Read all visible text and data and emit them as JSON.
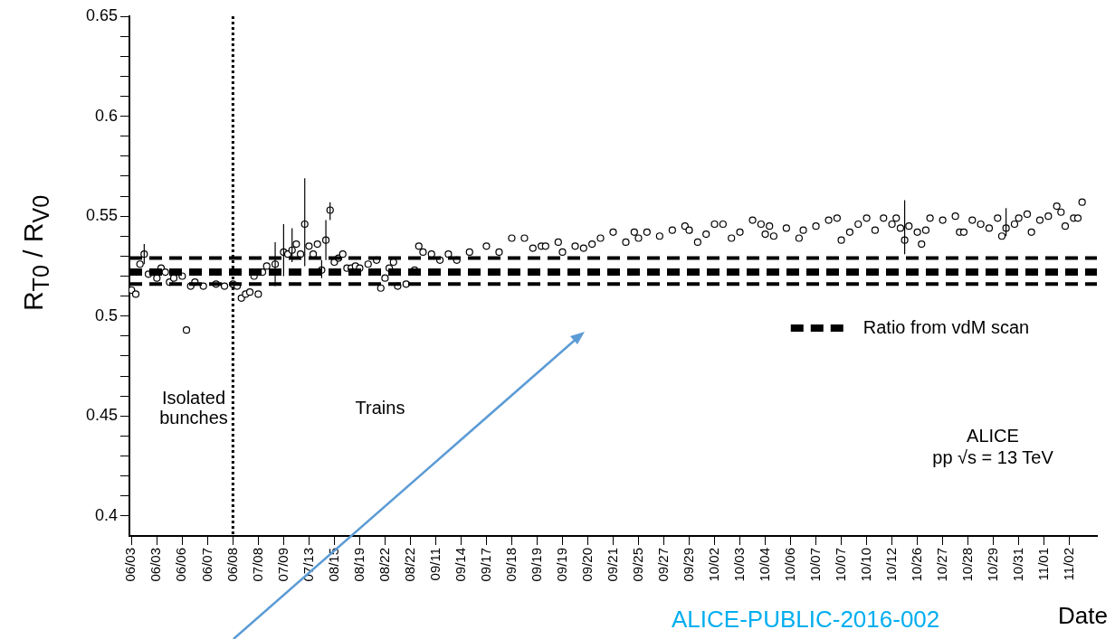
{
  "chart_data": {
    "type": "scatter",
    "xlabel": "Date",
    "ylabel": "R$_{T0}$ / R$_{V0}$",
    "categories": [
      "06/03",
      null,
      null,
      null,
      null,
      null,
      "06/03",
      null,
      null,
      null,
      null,
      null,
      "06/06",
      null,
      null,
      null,
      null,
      null,
      "06/07",
      null,
      null,
      null,
      null,
      null,
      "06/08",
      null,
      null,
      null,
      null,
      null,
      "07/08",
      null,
      null,
      null,
      null,
      null,
      "07/09",
      null,
      null,
      null,
      null,
      null,
      "07/13",
      null,
      null,
      null,
      null,
      null,
      "08/15",
      null,
      null,
      null,
      null,
      null,
      "08/19",
      null,
      null,
      null,
      null,
      null,
      "08/22",
      null,
      null,
      null,
      null,
      null,
      "08/22",
      null,
      null,
      null,
      null,
      null,
      "09/11",
      null,
      null,
      null,
      null,
      null,
      "09/14",
      null,
      null,
      null,
      null,
      null,
      "09/17",
      null,
      null,
      null,
      null,
      null,
      "09/18",
      null,
      null,
      null,
      null,
      null,
      "09/19",
      null,
      null,
      null,
      null,
      null,
      "09/19",
      null,
      null,
      null,
      null,
      null,
      "09/20",
      null,
      null,
      null,
      null,
      null,
      "09/21",
      null,
      null,
      null,
      null,
      null,
      "09/25",
      null,
      null,
      null,
      null,
      null,
      "09/27",
      null,
      null,
      null,
      null,
      null,
      "09/29",
      null,
      null,
      null,
      null,
      null,
      "10/02",
      null,
      null,
      null,
      null,
      null,
      "10/03",
      null,
      null,
      null,
      null,
      null,
      "10/04",
      null,
      null,
      null,
      null,
      null,
      "10/06",
      null,
      null,
      null,
      null,
      null,
      "10/07",
      null,
      null,
      null,
      null,
      null,
      "10/07",
      null,
      null,
      null,
      null,
      null,
      "10/10",
      null,
      null,
      null,
      null,
      null,
      "10/12",
      null,
      null,
      null,
      null,
      null,
      "10/26",
      null,
      null,
      null,
      null,
      null,
      "10/27",
      null,
      null,
      null,
      null,
      null,
      "10/28",
      null,
      null,
      null,
      null,
      null,
      "10/29",
      null,
      null,
      null,
      null,
      null,
      "10/31",
      null,
      null,
      null,
      null,
      null,
      "11/01",
      null,
      null,
      null,
      null,
      null,
      "11/02",
      null,
      null,
      null,
      null,
      null,
      null
    ],
    "ylim": [
      0.39,
      0.65
    ],
    "yticks": [
      {
        "value": 0.4,
        "label": "0.4"
      },
      {
        "value": 0.41,
        "label": null
      },
      {
        "value": 0.42,
        "label": null
      },
      {
        "value": 0.43,
        "label": null
      },
      {
        "value": 0.44,
        "label": null
      },
      {
        "value": 0.45,
        "label": "0.45"
      },
      {
        "value": 0.46,
        "label": null
      },
      {
        "value": 0.47,
        "label": null
      },
      {
        "value": 0.48,
        "label": null
      },
      {
        "value": 0.49,
        "label": null
      },
      {
        "value": 0.5,
        "label": "0.5"
      },
      {
        "value": 0.51,
        "label": null
      },
      {
        "value": 0.52,
        "label": null
      },
      {
        "value": 0.53,
        "label": null
      },
      {
        "value": 0.54,
        "label": null
      },
      {
        "value": 0.55,
        "label": "0.55"
      },
      {
        "value": 0.56,
        "label": null
      },
      {
        "value": 0.57,
        "label": null
      },
      {
        "value": 0.58,
        "label": null
      },
      {
        "value": 0.59,
        "label": null
      },
      {
        "value": 0.6,
        "label": "0.6"
      },
      {
        "value": 0.61,
        "label": null
      },
      {
        "value": 0.62,
        "label": null
      },
      {
        "value": 0.63,
        "label": null
      },
      {
        "value": 0.64,
        "label": null
      },
      {
        "value": 0.65,
        "label": "0.65"
      }
    ],
    "legend": "right",
    "marker": "circle",
    "series": [
      {
        "color": "#000000",
        "values": [
          0.513,
          0.511,
          0.526,
          0.531,
          0.521,
          0.522,
          0.519,
          0.524,
          0.522,
          0.517,
          0.519,
          null,
          0.52,
          0.493,
          0.515,
          0.517,
          null,
          0.515,
          null,
          null,
          0.516,
          null,
          0.515,
          null,
          0.516,
          0.515,
          0.509,
          0.511,
          0.512,
          0.52,
          0.511,
          0.522,
          0.525,
          null,
          0.526,
          null,
          0.532,
          0.531,
          0.533,
          0.536,
          0.531,
          0.546,
          0.535,
          0.531,
          0.536,
          0.523,
          0.538,
          0.553,
          0.527,
          0.529,
          0.531,
          0.524,
          0.524,
          0.525,
          0.524,
          null,
          0.526,
          null,
          0.528,
          0.514,
          0.519,
          0.524,
          0.527,
          0.515,
          null,
          0.516,
          null,
          0.523,
          0.535,
          0.532,
          null,
          0.531,
          null,
          0.528,
          null,
          0.531,
          null,
          0.528,
          null,
          null,
          0.532,
          null,
          null,
          null,
          0.535,
          null,
          null,
          0.532,
          null,
          null,
          0.539,
          null,
          null,
          0.539,
          null,
          0.534,
          null,
          0.535,
          0.535,
          null,
          null,
          0.537,
          0.532,
          null,
          null,
          0.535,
          null,
          0.534,
          null,
          0.536,
          null,
          0.539,
          null,
          null,
          0.542,
          null,
          null,
          0.537,
          null,
          0.542,
          0.539,
          null,
          0.542,
          null,
          null,
          0.54,
          null,
          null,
          0.543,
          null,
          null,
          0.545,
          0.543,
          null,
          0.537,
          null,
          0.541,
          null,
          0.546,
          null,
          0.546,
          null,
          0.539,
          null,
          0.542,
          null,
          null,
          0.548,
          null,
          0.546,
          0.541,
          0.545,
          0.54,
          null,
          null,
          0.544,
          null,
          null,
          0.539,
          0.543,
          null,
          null,
          0.545,
          null,
          null,
          0.548,
          null,
          0.549,
          0.538,
          null,
          0.542,
          null,
          0.546,
          null,
          0.549,
          null,
          0.543,
          null,
          0.549,
          null,
          0.546,
          0.549,
          0.544,
          0.538,
          0.545,
          null,
          0.542,
          0.536,
          0.543,
          0.549,
          null,
          null,
          0.548,
          null,
          null,
          0.55,
          0.542,
          0.542,
          null,
          0.548,
          null,
          0.546,
          null,
          0.544,
          null,
          0.549,
          0.54,
          0.544,
          null,
          0.546,
          0.549,
          null,
          0.551,
          0.542,
          null,
          0.548,
          null,
          0.55,
          null,
          0.555,
          0.552,
          0.545,
          null,
          0.549,
          0.549,
          0.557,
          null,
          null,
          null
        ],
        "errors": [
          null,
          null,
          null,
          [
            0.526,
            0.536
          ],
          null,
          null,
          null,
          null,
          null,
          null,
          null,
          null,
          null,
          null,
          null,
          null,
          null,
          null,
          null,
          null,
          null,
          null,
          null,
          null,
          null,
          null,
          null,
          null,
          null,
          null,
          null,
          null,
          null,
          null,
          [
            0.515,
            0.537
          ],
          null,
          [
            0.52,
            0.546
          ],
          null,
          [
            0.527,
            0.544
          ],
          null,
          null,
          [
            0.525,
            0.569
          ],
          null,
          null,
          null,
          [
            0.519,
            0.528
          ],
          [
            0.528,
            0.548
          ],
          [
            0.548,
            0.557
          ],
          null,
          null,
          null,
          null,
          null,
          null,
          null,
          null,
          null,
          null,
          null,
          null,
          null,
          null,
          null,
          null,
          null,
          null,
          null,
          null,
          null,
          null,
          null,
          null,
          null,
          null,
          null,
          null,
          null,
          null,
          null,
          null,
          null,
          null,
          null,
          null,
          null,
          null,
          null,
          null,
          null,
          null,
          null,
          null,
          null,
          null,
          null,
          null,
          null,
          null,
          null,
          null,
          null,
          null,
          null,
          null,
          null,
          null,
          null,
          null,
          null,
          null,
          null,
          null,
          null,
          null,
          null,
          null,
          null,
          null,
          null,
          null,
          null,
          null,
          null,
          null,
          null,
          null,
          null,
          null,
          null,
          null,
          null,
          null,
          null,
          null,
          null,
          null,
          null,
          null,
          null,
          null,
          null,
          null,
          null,
          null,
          null,
          null,
          null,
          null,
          null,
          null,
          null,
          null,
          null,
          null,
          null,
          null,
          null,
          null,
          null,
          null,
          null,
          null,
          null,
          null,
          null,
          null,
          null,
          null,
          null,
          null,
          null,
          null,
          null,
          null,
          null,
          null,
          null,
          null,
          null,
          null,
          null,
          null,
          null,
          [
            0.531,
            0.558
          ],
          null,
          null,
          null,
          null,
          null,
          null,
          null,
          null,
          null,
          null,
          null,
          null,
          null,
          null,
          null,
          null,
          null,
          null,
          null,
          null,
          null,
          null,
          null,
          [
            0.54,
            0.554
          ],
          null,
          null,
          null,
          null,
          null,
          null,
          null,
          null,
          null,
          null,
          null,
          null,
          null,
          null,
          null,
          null,
          null,
          null,
          null,
          null,
          null
        ]
      }
    ],
    "ref_lines": [
      {
        "axis": "x",
        "value": "06/08",
        "line_style": "dotted",
        "color": "#000000"
      },
      {
        "axis": "y",
        "value": 0.529,
        "line_style": "dashed",
        "color": "#000000"
      },
      {
        "axis": "y",
        "value": 0.522,
        "line_style": "dashed",
        "color": "#000000",
        "label": "Ratio from vdM scan"
      },
      {
        "axis": "y",
        "value": 0.516,
        "line_style": "dashed",
        "color": "#000000"
      }
    ],
    "annotations": [
      "Isolated bunches",
      "Trains",
      "ALICE",
      "pp √s = 13 TeV",
      "ALICE-PUBLIC-2016-002"
    ]
  }
}
